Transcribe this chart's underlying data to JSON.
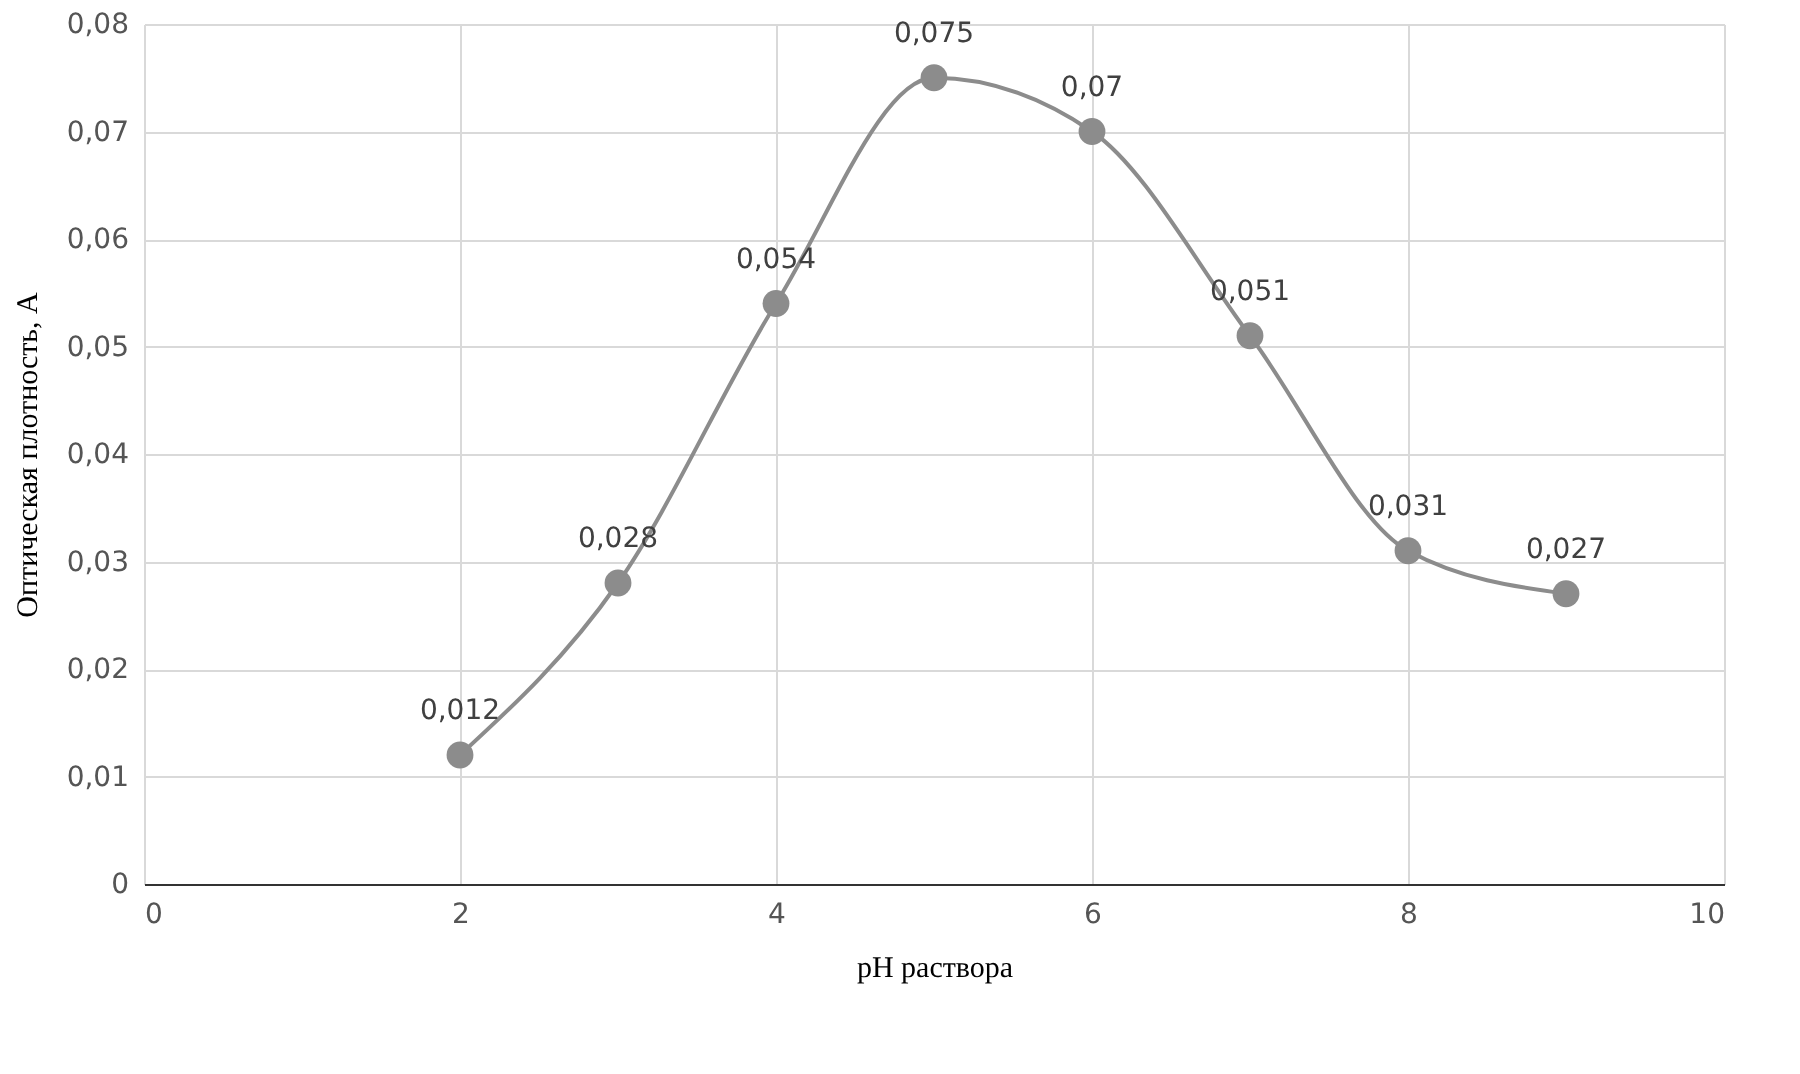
{
  "chart_data": {
    "type": "line",
    "xlabel": "pH раствора",
    "ylabel": "Оптическая плотность, А",
    "x": [
      2,
      3,
      4,
      5,
      6,
      7,
      8,
      9
    ],
    "series": [
      {
        "color": "#8c8c8c",
        "values": [
          0.012,
          0.028,
          0.054,
          0.075,
          0.07,
          0.051,
          0.031,
          0.027
        ],
        "value_labels": [
          "0,012",
          "0,028",
          "0,054",
          "0,075",
          "0,07",
          "0,051",
          "0,031",
          "0,027"
        ]
      }
    ],
    "xlim": [
      0,
      10
    ],
    "xticks": [
      0,
      2,
      4,
      6,
      8,
      10
    ],
    "ylim": [
      0,
      0.08
    ],
    "yticks": [
      0,
      {
        "value": 0.01,
        "label": "0,01"
      },
      {
        "value": 0.02,
        "label": "0,02"
      },
      {
        "value": 0.03,
        "label": "0,03"
      },
      {
        "value": 0.04,
        "label": "0,04"
      },
      {
        "value": 0.05,
        "label": "0,05"
      },
      {
        "value": 0.06,
        "label": "0,06"
      },
      {
        "value": 0.07,
        "label": "0,07"
      },
      {
        "value": 0.08,
        "label": "0,08"
      }
    ],
    "grid": true,
    "marker": "circle",
    "line_style": "solid"
  }
}
